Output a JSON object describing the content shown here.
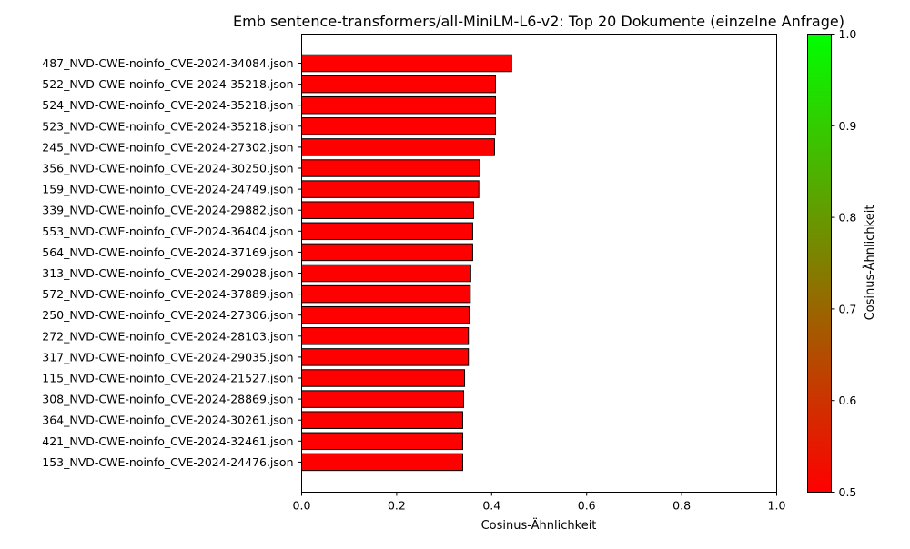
{
  "chart_data": {
    "type": "bar",
    "orientation": "horizontal",
    "title": "Emb sentence-transformers/all-MiniLM-L6-v2: Top 20 Dokumente (einzelne Anfrage)",
    "xlabel": "Cosinus-Ähnlichkeit",
    "ylabel": "",
    "xlim": [
      0,
      1.0
    ],
    "xticks": [
      "0.0",
      "0.2",
      "0.4",
      "0.6",
      "0.8",
      "1.0"
    ],
    "grid": false,
    "bar_color": "#ff0000",
    "bar_edge_color": "#000000",
    "categories": [
      "487_NVD-CWE-noinfo_CVE-2024-34084.json",
      "522_NVD-CWE-noinfo_CVE-2024-35218.json",
      "524_NVD-CWE-noinfo_CVE-2024-35218.json",
      "523_NVD-CWE-noinfo_CVE-2024-35218.json",
      "245_NVD-CWE-noinfo_CVE-2024-27302.json",
      "356_NVD-CWE-noinfo_CVE-2024-30250.json",
      "159_NVD-CWE-noinfo_CVE-2024-24749.json",
      "339_NVD-CWE-noinfo_CVE-2024-29882.json",
      "553_NVD-CWE-noinfo_CVE-2024-36404.json",
      "564_NVD-CWE-noinfo_CVE-2024-37169.json",
      "313_NVD-CWE-noinfo_CVE-2024-29028.json",
      "572_NVD-CWE-noinfo_CVE-2024-37889.json",
      "250_NVD-CWE-noinfo_CVE-2024-27306.json",
      "272_NVD-CWE-noinfo_CVE-2024-28103.json",
      "317_NVD-CWE-noinfo_CVE-2024-29035.json",
      "115_NVD-CWE-noinfo_CVE-2024-21527.json",
      "308_NVD-CWE-noinfo_CVE-2024-28869.json",
      "364_NVD-CWE-noinfo_CVE-2024-30261.json",
      "421_NVD-CWE-noinfo_CVE-2024-32461.json",
      "153_NVD-CWE-noinfo_CVE-2024-24476.json"
    ],
    "values": [
      0.442,
      0.408,
      0.408,
      0.408,
      0.406,
      0.375,
      0.373,
      0.362,
      0.36,
      0.36,
      0.356,
      0.355,
      0.353,
      0.351,
      0.351,
      0.343,
      0.341,
      0.339,
      0.339,
      0.339
    ],
    "colorbar": {
      "label": "Cosinus-Ähnlichkeit",
      "range": [
        0.5,
        1.0
      ],
      "ticks": [
        "0.5",
        "0.6",
        "0.7",
        "0.8",
        "0.9",
        "1.0"
      ],
      "color_low": "#ff0000",
      "color_high": "#00ff00"
    }
  }
}
